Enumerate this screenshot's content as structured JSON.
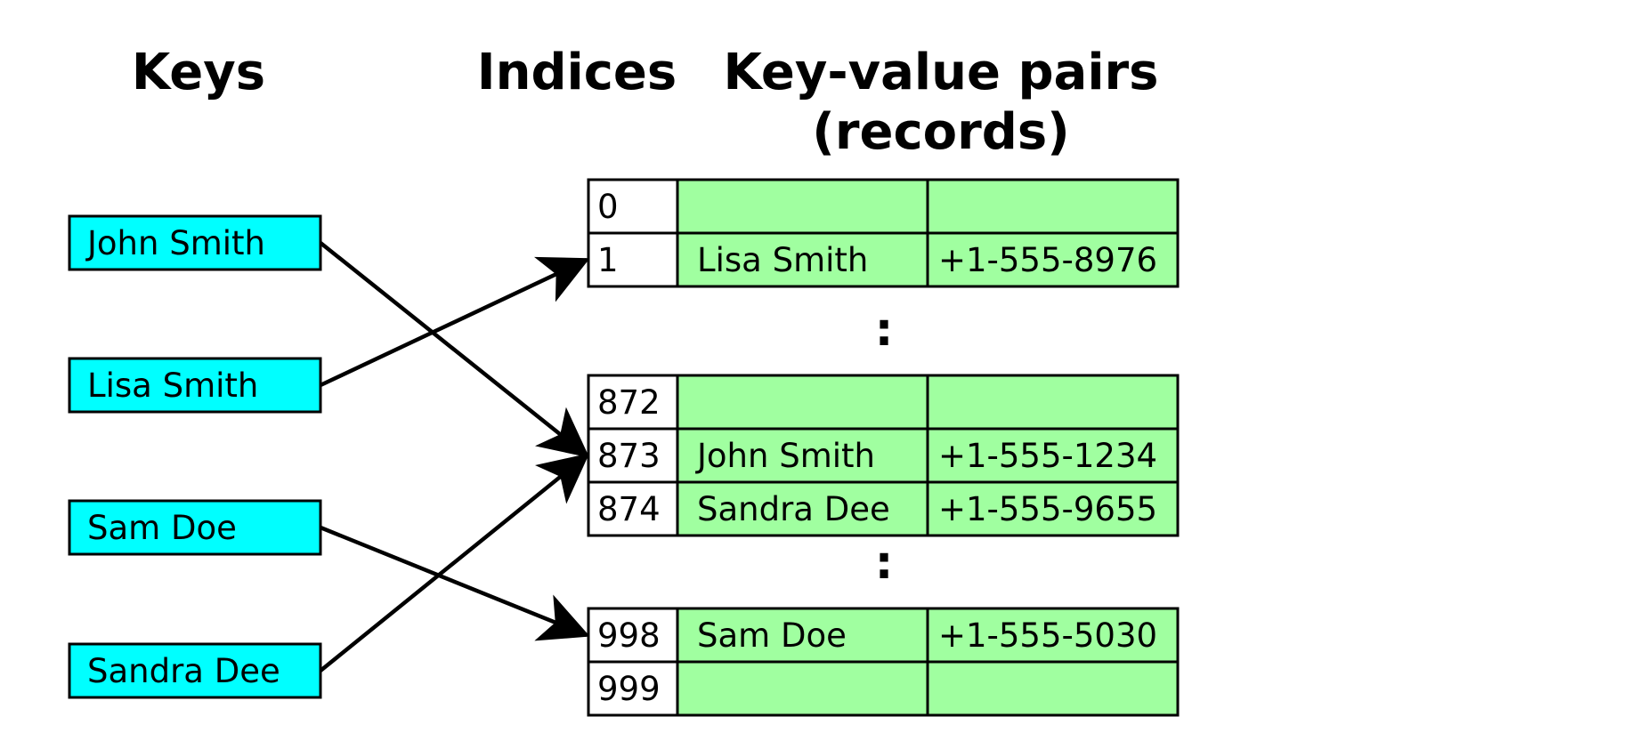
{
  "headings": {
    "keys": "Keys",
    "indices": "Indices",
    "records_line1": "Key-value pairs",
    "records_line2": "(records)"
  },
  "keys": [
    "John Smith",
    "Lisa Smith",
    "Sam Doe",
    "Sandra Dee"
  ],
  "table": {
    "groups": [
      {
        "rows": [
          {
            "index": "0",
            "name": "",
            "phone": ""
          },
          {
            "index": "1",
            "name": "Lisa Smith",
            "phone": "+1-555-8976"
          }
        ]
      },
      {
        "rows": [
          {
            "index": "872",
            "name": "",
            "phone": ""
          },
          {
            "index": "873",
            "name": "John Smith",
            "phone": "+1-555-1234"
          },
          {
            "index": "874",
            "name": "Sandra Dee",
            "phone": "+1-555-9655"
          }
        ]
      },
      {
        "rows": [
          {
            "index": "998",
            "name": "Sam Doe",
            "phone": "+1-555-5030"
          },
          {
            "index": "999",
            "name": "",
            "phone": ""
          }
        ]
      }
    ],
    "ellipsis": ":"
  },
  "mappings": [
    {
      "key": "John Smith",
      "index": "873"
    },
    {
      "key": "Lisa Smith",
      "index": "1"
    },
    {
      "key": "Sam Doe",
      "index": "998"
    },
    {
      "key": "Sandra Dee",
      "index": "873"
    }
  ],
  "colors": {
    "key_fill": "#00ffff",
    "record_fill": "#a0ffa0",
    "index_fill": "#ffffff",
    "stroke": "#000000"
  }
}
